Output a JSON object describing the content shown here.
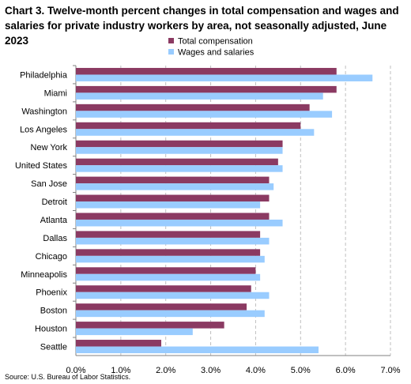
{
  "title": "Chart 3. Twelve-month percent changes in total compensation and wages and salaries for private industry workers by area, not seasonally adjusted, June 2023",
  "source": "Source: U.S. Bureau of Labor Statistics.",
  "colors": {
    "total_compensation": "#8B3A62",
    "wages_and_salaries": "#99CCFF",
    "grid": "#BFBFBF",
    "axis": "#808080"
  },
  "chart_data": {
    "type": "bar",
    "orientation": "horizontal",
    "title": "Chart 3. Twelve-month percent changes in total compensation and wages and salaries for private industry workers by area, not seasonally adjusted, June 2023",
    "categories": [
      "Philadelphia",
      "Miami",
      "Washington",
      "Los Angeles",
      "New York",
      "United States",
      "San Jose",
      "Detroit",
      "Atlanta",
      "Dallas",
      "Chicago",
      "Minneapolis",
      "Phoenix",
      "Boston",
      "Houston",
      "Seattle"
    ],
    "series": [
      {
        "name": "Total compensation",
        "values": [
          5.8,
          5.8,
          5.2,
          5.0,
          4.6,
          4.5,
          4.3,
          4.3,
          4.3,
          4.1,
          4.1,
          4.0,
          3.9,
          3.8,
          3.3,
          1.9
        ]
      },
      {
        "name": "Wages and salaries",
        "values": [
          6.6,
          5.5,
          5.7,
          5.3,
          4.6,
          4.6,
          4.4,
          4.1,
          4.6,
          4.3,
          4.2,
          4.1,
          4.3,
          4.2,
          2.6,
          5.4
        ]
      }
    ],
    "xlim": [
      0,
      7
    ],
    "x_ticks": [
      "0.0%",
      "1.0%",
      "2.0%",
      "3.0%",
      "4.0%",
      "5.0%",
      "6.0%",
      "7.0%"
    ],
    "x_tick_values": [
      0,
      1,
      2,
      3,
      4,
      5,
      6,
      7
    ],
    "grid": "vertical dashed",
    "legend": "top-center"
  }
}
